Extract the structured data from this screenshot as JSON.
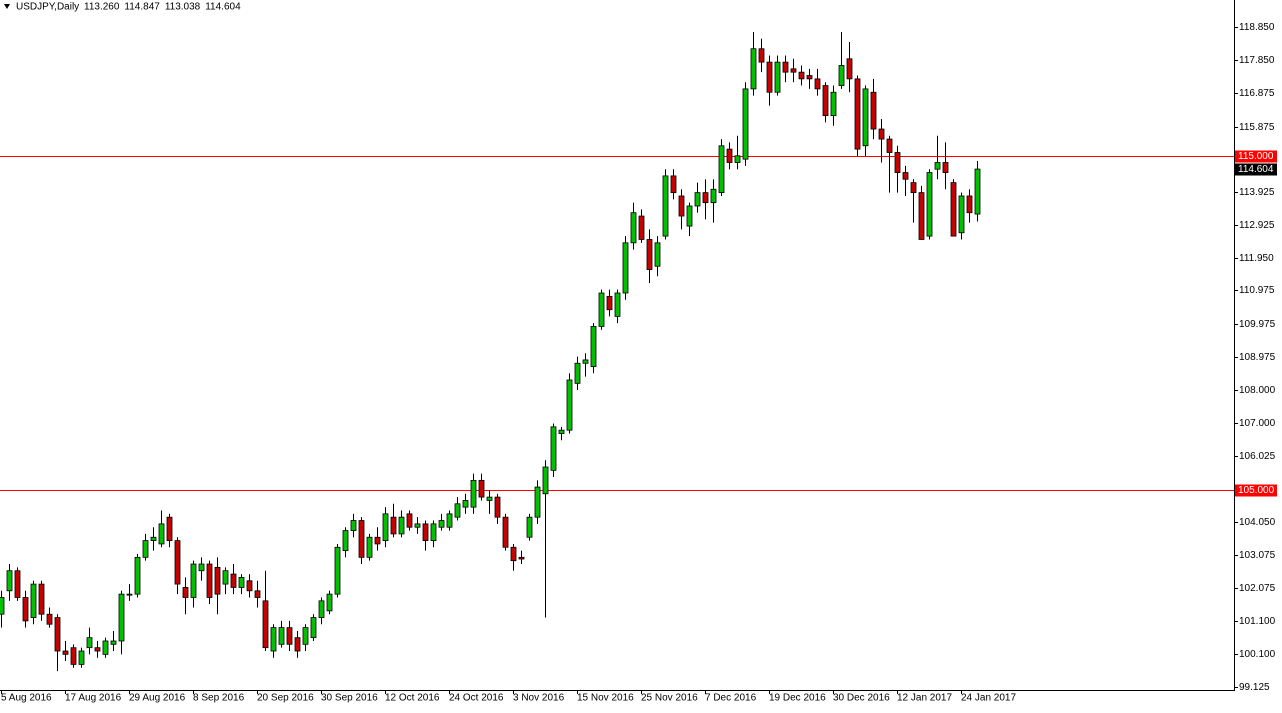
{
  "chart_data": {
    "type": "candlestick",
    "title": "USDJPY,Daily",
    "header_values": [
      "113.260",
      "114.847",
      "113.038",
      "114.604"
    ],
    "up_color": "#00c000",
    "down_color": "#c80000",
    "ylim": [
      99.035,
      119.657
    ],
    "yticks": [
      {
        "value": 118.85,
        "label": "118.850"
      },
      {
        "value": 117.85,
        "label": "117.850"
      },
      {
        "value": 116.875,
        "label": "116.875"
      },
      {
        "value": 115.875,
        "label": "115.875"
      },
      {
        "value": 114.9,
        "label": "114.900"
      },
      {
        "value": 113.925,
        "label": "113.925"
      },
      {
        "value": 112.925,
        "label": "112.925"
      },
      {
        "value": 111.95,
        "label": "111.950"
      },
      {
        "value": 110.975,
        "label": "110.975"
      },
      {
        "value": 109.975,
        "label": "109.975"
      },
      {
        "value": 108.975,
        "label": "108.975"
      },
      {
        "value": 108.0,
        "label": "108.000"
      },
      {
        "value": 107.0,
        "label": "107.000"
      },
      {
        "value": 106.025,
        "label": "106.025"
      },
      {
        "value": 105.025,
        "label": "105.025"
      },
      {
        "value": 104.05,
        "label": "104.050"
      },
      {
        "value": 103.075,
        "label": "103.075"
      },
      {
        "value": 102.075,
        "label": "102.075"
      },
      {
        "value": 101.1,
        "label": "101.100"
      },
      {
        "value": 100.1,
        "label": "100.100"
      },
      {
        "value": 99.125,
        "label": "99.125"
      }
    ],
    "hlines": [
      {
        "value": 115,
        "label": "115.000"
      },
      {
        "value": 105,
        "label": "105.000"
      }
    ],
    "hline_color": "#ff0000",
    "last_price": {
      "value": 114.604,
      "label": "114.604"
    },
    "categories": [
      "5 Aug 2016",
      null,
      null,
      null,
      null,
      null,
      null,
      null,
      "17 Aug 2016",
      null,
      null,
      null,
      null,
      null,
      null,
      null,
      "29 Aug 2016",
      null,
      null,
      null,
      null,
      null,
      null,
      null,
      "8 Sep 2016",
      null,
      null,
      null,
      null,
      null,
      null,
      null,
      "20 Sep 2016",
      null,
      null,
      null,
      null,
      null,
      null,
      null,
      "30 Sep 2016",
      null,
      null,
      null,
      null,
      null,
      null,
      null,
      "12 Oct 2016",
      null,
      null,
      null,
      null,
      null,
      null,
      null,
      "24 Oct 2016",
      null,
      null,
      null,
      null,
      null,
      null,
      null,
      "3 Nov 2016",
      null,
      null,
      null,
      null,
      null,
      null,
      null,
      "15 Nov 2016",
      null,
      null,
      null,
      null,
      null,
      null,
      null,
      "25 Nov 2016",
      null,
      null,
      null,
      null,
      null,
      null,
      null,
      "7 Dec 2016",
      null,
      null,
      null,
      null,
      null,
      null,
      null,
      "19 Dec 2016",
      null,
      null,
      null,
      null,
      null,
      null,
      null,
      "30 Dec 2016",
      null,
      null,
      null,
      null,
      null,
      null,
      null,
      "12 Jan 2017",
      null,
      null,
      null,
      null,
      null,
      null,
      null,
      "24 Jan 2017",
      null,
      null
    ],
    "values": [
      [
        101.3,
        102.0,
        100.9,
        101.8
      ],
      [
        102.0,
        102.8,
        101.7,
        102.6
      ],
      [
        102.6,
        102.7,
        101.7,
        101.8
      ],
      [
        101.8,
        102.0,
        100.9,
        101.1
      ],
      [
        101.2,
        102.3,
        101.0,
        102.2
      ],
      [
        102.2,
        102.3,
        101.1,
        101.3
      ],
      [
        101.3,
        101.5,
        100.9,
        101.0
      ],
      [
        101.2,
        101.3,
        99.6,
        100.2
      ],
      [
        100.2,
        100.5,
        99.9,
        100.1
      ],
      [
        100.3,
        100.4,
        99.7,
        99.8
      ],
      [
        99.8,
        100.3,
        99.7,
        100.2
      ],
      [
        100.3,
        100.9,
        100.1,
        100.6
      ],
      [
        100.3,
        100.5,
        100.0,
        100.2
      ],
      [
        100.1,
        100.6,
        100.0,
        100.5
      ],
      [
        100.4,
        100.8,
        100.2,
        100.5
      ],
      [
        100.5,
        102.0,
        100.1,
        101.9
      ],
      [
        101.9,
        102.2,
        101.7,
        101.9
      ],
      [
        101.9,
        103.1,
        101.8,
        103.0
      ],
      [
        103.0,
        103.7,
        102.9,
        103.5
      ],
      [
        103.5,
        103.9,
        103.2,
        103.6
      ],
      [
        103.4,
        104.4,
        103.3,
        104.0
      ],
      [
        104.2,
        104.3,
        103.3,
        103.5
      ],
      [
        103.5,
        103.6,
        101.9,
        102.2
      ],
      [
        102.1,
        102.4,
        101.3,
        101.8
      ],
      [
        101.8,
        102.9,
        101.5,
        102.8
      ],
      [
        102.6,
        103.0,
        102.3,
        102.8
      ],
      [
        102.8,
        102.9,
        101.6,
        101.8
      ],
      [
        102.7,
        103.0,
        101.3,
        101.9
      ],
      [
        102.2,
        102.7,
        101.9,
        102.6
      ],
      [
        102.5,
        102.8,
        101.9,
        102.1
      ],
      [
        102.1,
        102.5,
        101.9,
        102.4
      ],
      [
        102.3,
        102.5,
        101.8,
        102.0
      ],
      [
        102.0,
        102.3,
        101.5,
        101.8
      ],
      [
        101.7,
        102.6,
        100.2,
        100.3
      ],
      [
        100.2,
        101.0,
        100.0,
        100.9
      ],
      [
        100.4,
        101.1,
        100.3,
        100.9
      ],
      [
        100.9,
        101.1,
        100.2,
        100.4
      ],
      [
        100.6,
        100.8,
        100.0,
        100.2
      ],
      [
        100.4,
        101.0,
        100.2,
        100.9
      ],
      [
        100.6,
        101.3,
        100.5,
        101.2
      ],
      [
        101.2,
        101.8,
        101.0,
        101.7
      ],
      [
        101.4,
        102.0,
        101.3,
        101.9
      ],
      [
        101.9,
        103.4,
        101.8,
        103.3
      ],
      [
        103.2,
        103.9,
        103.0,
        103.8
      ],
      [
        103.8,
        104.3,
        103.6,
        104.1
      ],
      [
        104.1,
        104.2,
        102.8,
        103.0
      ],
      [
        103.0,
        103.7,
        102.9,
        103.6
      ],
      [
        103.6,
        103.9,
        103.2,
        103.4
      ],
      [
        103.5,
        104.5,
        103.3,
        104.3
      ],
      [
        104.2,
        104.6,
        103.6,
        103.7
      ],
      [
        103.7,
        104.4,
        103.6,
        104.2
      ],
      [
        104.3,
        104.4,
        103.8,
        103.9
      ],
      [
        103.9,
        104.2,
        103.7,
        104.0
      ],
      [
        104.0,
        104.1,
        103.2,
        103.5
      ],
      [
        103.5,
        104.1,
        103.3,
        104.0
      ],
      [
        103.9,
        104.3,
        103.8,
        104.1
      ],
      [
        103.9,
        104.4,
        103.8,
        104.3
      ],
      [
        104.2,
        104.8,
        104.1,
        104.6
      ],
      [
        104.5,
        104.9,
        104.3,
        104.7
      ],
      [
        104.5,
        105.5,
        104.3,
        105.3
      ],
      [
        105.3,
        105.5,
        104.7,
        104.8
      ],
      [
        104.7,
        105.0,
        104.3,
        104.8
      ],
      [
        104.8,
        104.9,
        104.0,
        104.2
      ],
      [
        104.2,
        104.3,
        103.2,
        103.3
      ],
      [
        103.3,
        103.4,
        102.6,
        102.9
      ],
      [
        103.0,
        103.2,
        102.8,
        102.95
      ],
      [
        103.6,
        104.3,
        103.5,
        104.2
      ],
      [
        104.2,
        105.3,
        104.0,
        105.1
      ],
      [
        104.9,
        105.9,
        101.2,
        105.7
      ],
      [
        105.6,
        107.0,
        105.4,
        106.9
      ],
      [
        106.7,
        106.9,
        106.5,
        106.8
      ],
      [
        106.8,
        108.5,
        106.7,
        108.3
      ],
      [
        108.2,
        109.0,
        108.0,
        108.8
      ],
      [
        108.8,
        109.1,
        108.4,
        108.9
      ],
      [
        108.7,
        110.0,
        108.5,
        109.9
      ],
      [
        109.9,
        111.0,
        109.8,
        110.9
      ],
      [
        110.8,
        111.0,
        110.2,
        110.4
      ],
      [
        110.2,
        111.0,
        110.0,
        110.9
      ],
      [
        110.9,
        112.6,
        110.7,
        112.4
      ],
      [
        112.4,
        113.6,
        112.2,
        113.3
      ],
      [
        113.2,
        113.4,
        112.4,
        112.5
      ],
      [
        112.5,
        112.8,
        111.2,
        111.6
      ],
      [
        111.7,
        112.6,
        111.4,
        112.4
      ],
      [
        112.6,
        114.6,
        112.5,
        114.4
      ],
      [
        114.4,
        114.6,
        113.7,
        113.9
      ],
      [
        113.8,
        114.0,
        112.8,
        113.2
      ],
      [
        112.9,
        113.6,
        112.6,
        113.5
      ],
      [
        113.5,
        114.2,
        113.3,
        113.9
      ],
      [
        113.9,
        114.3,
        113.1,
        113.6
      ],
      [
        113.6,
        114.3,
        113.0,
        114.0
      ],
      [
        113.9,
        115.5,
        113.8,
        115.3
      ],
      [
        115.2,
        115.4,
        114.6,
        114.8
      ],
      [
        114.8,
        115.6,
        114.6,
        115.0
      ],
      [
        114.9,
        117.2,
        114.7,
        117.0
      ],
      [
        117.0,
        118.7,
        116.8,
        118.2
      ],
      [
        118.2,
        118.5,
        117.5,
        117.8
      ],
      [
        117.8,
        118.0,
        116.5,
        116.9
      ],
      [
        116.9,
        118.0,
        116.8,
        117.8
      ],
      [
        117.8,
        118.0,
        117.2,
        117.5
      ],
      [
        117.6,
        117.9,
        117.2,
        117.5
      ],
      [
        117.5,
        117.7,
        117.1,
        117.3
      ],
      [
        117.4,
        117.6,
        117.0,
        117.3
      ],
      [
        117.3,
        117.6,
        116.8,
        117.0
      ],
      [
        117.1,
        117.2,
        116.0,
        116.2
      ],
      [
        116.2,
        117.1,
        115.9,
        116.9
      ],
      [
        117.1,
        118.7,
        117.0,
        117.7
      ],
      [
        117.9,
        118.4,
        116.9,
        117.3
      ],
      [
        117.3,
        117.4,
        115.0,
        115.2
      ],
      [
        115.3,
        117.1,
        115.0,
        117.0
      ],
      [
        116.9,
        117.3,
        115.5,
        115.8
      ],
      [
        115.8,
        116.1,
        114.8,
        115.5
      ],
      [
        115.5,
        115.6,
        113.9,
        115.1
      ],
      [
        115.1,
        115.3,
        113.9,
        114.5
      ],
      [
        114.5,
        114.7,
        113.8,
        114.3
      ],
      [
        114.2,
        114.3,
        113.0,
        113.9
      ],
      [
        113.9,
        114.1,
        112.5,
        112.5
      ],
      [
        112.6,
        114.6,
        112.5,
        114.5
      ],
      [
        114.6,
        115.6,
        114.3,
        114.8
      ],
      [
        114.8,
        115.4,
        114.0,
        114.5
      ],
      [
        114.2,
        114.3,
        112.6,
        112.6
      ],
      [
        112.7,
        113.9,
        112.5,
        113.8
      ],
      [
        113.8,
        114.0,
        113.0,
        113.3
      ],
      [
        113.26,
        114.847,
        113.038,
        114.604
      ]
    ]
  }
}
